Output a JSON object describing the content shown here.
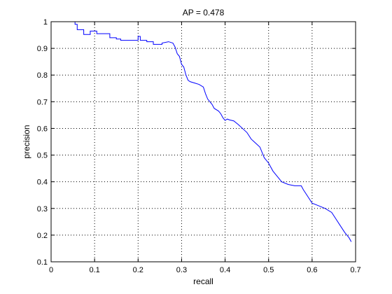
{
  "colors": {
    "series": "#0000ff",
    "axes": "#000000",
    "grid": "#000000",
    "background": "#ffffff"
  },
  "chart_data": {
    "type": "line",
    "title": "AP = 0.478",
    "xlabel": "recall",
    "ylabel": "precision",
    "xlim": [
      0,
      0.7
    ],
    "ylim": [
      0.1,
      1
    ],
    "xticks": [
      0,
      0.1,
      0.2,
      0.3,
      0.4,
      0.5,
      0.6,
      0.7
    ],
    "yticks": [
      0.1,
      0.2,
      0.3,
      0.4,
      0.5,
      0.6,
      0.7,
      0.8,
      0.9,
      1
    ],
    "xtick_labels": [
      "0",
      "0.1",
      "0.2",
      "0.3",
      "0.4",
      "0.5",
      "0.6",
      "0.7"
    ],
    "ytick_labels": [
      "0.1",
      "0.2",
      "0.3",
      "0.4",
      "0.5",
      "0.6",
      "0.7",
      "0.8",
      "0.9",
      "1"
    ],
    "grid": true,
    "grid_style": "dotted",
    "legend": "none",
    "series": [
      {
        "x": [
          0.055,
          0.055,
          0.06,
          0.06,
          0.075,
          0.075,
          0.09,
          0.09,
          0.105,
          0.105,
          0.12,
          0.12,
          0.135,
          0.135,
          0.15,
          0.15,
          0.16,
          0.16,
          0.2,
          0.2,
          0.205,
          0.205,
          0.22,
          0.22,
          0.235,
          0.235,
          0.255,
          0.255,
          0.27,
          0.28,
          0.285,
          0.29,
          0.295,
          0.3,
          0.305,
          0.31,
          0.315,
          0.32,
          0.33,
          0.34,
          0.35,
          0.355,
          0.36,
          0.365,
          0.37,
          0.375,
          0.385,
          0.39,
          0.395,
          0.4,
          0.405,
          0.41,
          0.42,
          0.43,
          0.44,
          0.45,
          0.46,
          0.47,
          0.48,
          0.485,
          0.49,
          0.5,
          0.51,
          0.52,
          0.53,
          0.545,
          0.56,
          0.57,
          0.575,
          0.58,
          0.59,
          0.6,
          0.615,
          0.63,
          0.645,
          0.655,
          0.665,
          0.675,
          0.685,
          0.69
        ],
        "y": [
          1.0,
          0.99,
          0.99,
          0.97,
          0.97,
          0.952,
          0.952,
          0.965,
          0.965,
          0.955,
          0.955,
          0.955,
          0.955,
          0.94,
          0.94,
          0.935,
          0.935,
          0.93,
          0.93,
          0.945,
          0.945,
          0.93,
          0.93,
          0.925,
          0.925,
          0.915,
          0.915,
          0.92,
          0.925,
          0.92,
          0.905,
          0.88,
          0.87,
          0.84,
          0.83,
          0.8,
          0.78,
          0.775,
          0.77,
          0.765,
          0.755,
          0.73,
          0.71,
          0.7,
          0.69,
          0.675,
          0.665,
          0.655,
          0.64,
          0.63,
          0.635,
          0.632,
          0.628,
          0.615,
          0.6,
          0.585,
          0.56,
          0.545,
          0.53,
          0.51,
          0.49,
          0.47,
          0.44,
          0.42,
          0.4,
          0.39,
          0.385,
          0.385,
          0.385,
          0.37,
          0.345,
          0.32,
          0.31,
          0.3,
          0.285,
          0.26,
          0.235,
          0.21,
          0.19,
          0.175
        ]
      }
    ]
  }
}
